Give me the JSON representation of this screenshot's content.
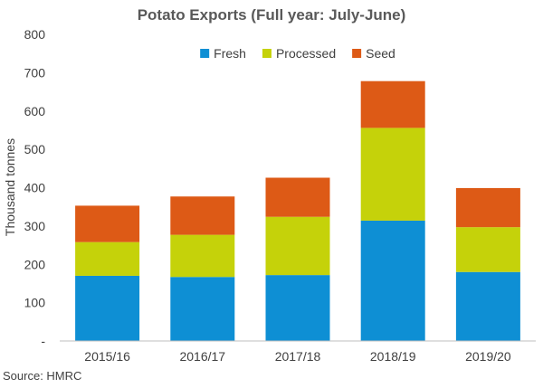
{
  "chart_data": {
    "type": "bar",
    "stacked": true,
    "title": "Potato Exports (Full year: July-June)",
    "ylabel": "Thousand tonnes",
    "xlabel": "",
    "source": "Source: HMRC",
    "categories": [
      "2015/16",
      "2016/17",
      "2017/18",
      "2018/19",
      "2019/20"
    ],
    "series": [
      {
        "name": "Fresh",
        "color": "#0E8FD4",
        "values": [
          170,
          167,
          172,
          314,
          180
        ]
      },
      {
        "name": "Processed",
        "color": "#C5D20A",
        "values": [
          88,
          110,
          152,
          242,
          117
        ]
      },
      {
        "name": "Seed",
        "color": "#DD5A16",
        "values": [
          95,
          100,
          102,
          122,
          102
        ]
      }
    ],
    "ylim": [
      0,
      800
    ],
    "yticks": [
      0,
      100,
      200,
      300,
      400,
      500,
      600,
      700,
      800
    ],
    "ytick_labels": [
      "-",
      "100",
      "200",
      "300",
      "400",
      "500",
      "600",
      "700",
      "800"
    ],
    "grid": false,
    "legend_position": "top-center"
  }
}
